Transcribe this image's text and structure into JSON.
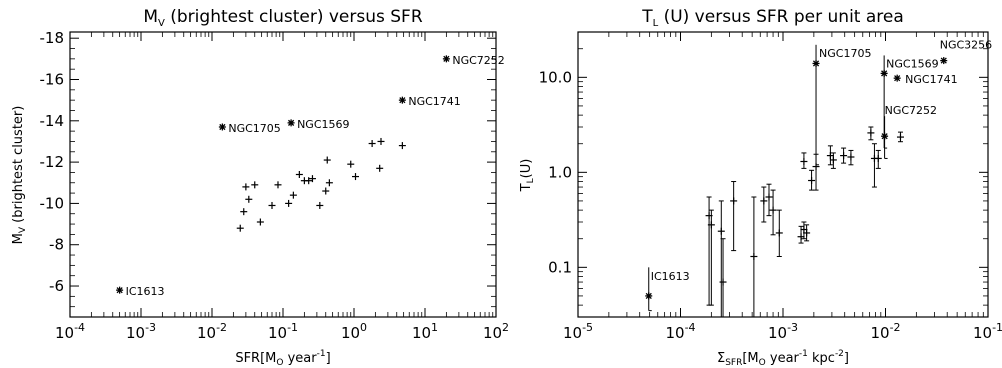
{
  "chart_data": [
    {
      "type": "scatter",
      "title": "M_V (brightest cluster) versus SFR",
      "title_parts": {
        "sym": "M",
        "sub": "V",
        "rest": " (brightest cluster) versus SFR"
      },
      "xlabel": "SFR[M_O year^-1]",
      "xlabel_parts": {
        "a": "SFR[M",
        "b": "O",
        "c": " year",
        "d": "-1",
        "e": "]"
      },
      "ylabel": "M_V (brightest cluster)",
      "ylabel_parts": {
        "a": "M",
        "b": "V",
        "c": " (brightest cluster)"
      },
      "x_scale": "log",
      "xlim": [
        0.0001,
        100
      ],
      "ylim": [
        -4.5,
        -18.3
      ],
      "y_inverted": true,
      "x_ticks": [
        0.0001,
        0.001,
        0.01,
        0.1,
        1,
        10,
        100
      ],
      "x_tick_labels": [
        {
          "base": "10",
          "exp": "-4"
        },
        {
          "base": "10",
          "exp": "-3"
        },
        {
          "base": "10",
          "exp": "-2"
        },
        {
          "base": "10",
          "exp": "-1"
        },
        {
          "base": "10",
          "exp": "0"
        },
        {
          "base": "10",
          "exp": "1"
        },
        {
          "base": "10",
          "exp": "2"
        }
      ],
      "y_ticks": [
        -6,
        -8,
        -10,
        -12,
        -14,
        -16,
        -18
      ],
      "y_tick_labels": [
        "-6",
        "-8",
        "-10",
        "-12",
        "-14",
        "-16",
        "-18"
      ],
      "labeled_points": [
        {
          "label": "IC1613",
          "x": 0.0005,
          "y": -5.8
        },
        {
          "label": "NGC1705",
          "x": 0.014,
          "y": -13.7
        },
        {
          "label": "NGC1569",
          "x": 0.13,
          "y": -13.9
        },
        {
          "label": "NGC1741",
          "x": 4.8,
          "y": -15.0
        },
        {
          "label": "NGC7252",
          "x": 20,
          "y": -17.0
        }
      ],
      "points": [
        {
          "x": 0.025,
          "y": -8.8
        },
        {
          "x": 0.028,
          "y": -9.6
        },
        {
          "x": 0.03,
          "y": -10.8
        },
        {
          "x": 0.033,
          "y": -10.2
        },
        {
          "x": 0.04,
          "y": -10.9
        },
        {
          "x": 0.048,
          "y": -9.1
        },
        {
          "x": 0.07,
          "y": -9.9
        },
        {
          "x": 0.085,
          "y": -10.9
        },
        {
          "x": 0.12,
          "y": -10.0
        },
        {
          "x": 0.14,
          "y": -10.4
        },
        {
          "x": 0.17,
          "y": -11.4
        },
        {
          "x": 0.2,
          "y": -11.1
        },
        {
          "x": 0.23,
          "y": -11.1
        },
        {
          "x": 0.26,
          "y": -11.2
        },
        {
          "x": 0.33,
          "y": -9.9
        },
        {
          "x": 0.4,
          "y": -10.6
        },
        {
          "x": 0.42,
          "y": -12.1
        },
        {
          "x": 0.45,
          "y": -11.0
        },
        {
          "x": 0.9,
          "y": -11.9
        },
        {
          "x": 1.05,
          "y": -11.3
        },
        {
          "x": 1.8,
          "y": -12.9
        },
        {
          "x": 2.3,
          "y": -11.7
        },
        {
          "x": 2.4,
          "y": -13.0
        },
        {
          "x": 4.8,
          "y": -12.8
        }
      ]
    },
    {
      "type": "scatter",
      "title": "T_L (U) versus SFR per unit area",
      "title_parts": {
        "sym": "T",
        "sub": "L",
        "rest": " (U) versus SFR per unit area"
      },
      "xlabel": "Σ_SFR[M_O year^-1 kpc^-2]",
      "xlabel_parts": {
        "a": "Σ",
        "b": "SFR",
        "c": "[M",
        "d": "O",
        "e": " year",
        "f": "-1",
        "g": " kpc",
        "h": "-2",
        "i": "]"
      },
      "ylabel": "T_L(U)",
      "ylabel_parts": {
        "a": "T",
        "b": "L",
        "c": "(U)"
      },
      "x_scale": "log",
      "y_scale": "log",
      "xlim": [
        1e-05,
        0.1
      ],
      "ylim": [
        0.03,
        30
      ],
      "x_ticks": [
        1e-05,
        0.0001,
        0.001,
        0.01,
        0.1
      ],
      "x_tick_labels": [
        {
          "base": "10",
          "exp": "-5"
        },
        {
          "base": "10",
          "exp": "-4"
        },
        {
          "base": "10",
          "exp": "-3"
        },
        {
          "base": "10",
          "exp": "-2"
        },
        {
          "base": "10",
          "exp": "-1"
        }
      ],
      "y_ticks": [
        0.1,
        1.0,
        10.0
      ],
      "y_tick_labels": [
        "0.1",
        "1.0",
        "10.0"
      ],
      "labeled_points": [
        {
          "label": "IC1613",
          "x": 4.9e-05,
          "y": 0.05,
          "ylo": 0.035,
          "yhi": 0.1
        },
        {
          "label": "NGC1705",
          "x": 0.0021,
          "y": 14,
          "ylo": 1.2,
          "yhi": 22
        },
        {
          "label": "NGC1569",
          "x": 0.0097,
          "y": 11,
          "ylo": 1.8,
          "yhi": 17
        },
        {
          "label": "NGC1741",
          "x": 0.013,
          "y": 9.8
        },
        {
          "label": "NGC7252",
          "x": 0.0098,
          "y": 2.4,
          "ylo": 1.4,
          "yhi": 3.9
        },
        {
          "label": "NGC3256",
          "x": 0.037,
          "y": 15
        }
      ],
      "points": [
        {
          "x": 0.00019,
          "y": 0.35,
          "ylo": 0.04,
          "yhi": 0.55
        },
        {
          "x": 0.0002,
          "y": 0.28,
          "ylo": 0.04,
          "yhi": 0.4
        },
        {
          "x": 0.00025,
          "y": 0.24,
          "ylo": 0.03,
          "yhi": 0.5
        },
        {
          "x": 0.00026,
          "y": 0.07,
          "ylo": 0.03,
          "yhi": 0.2
        },
        {
          "x": 0.00033,
          "y": 0.5,
          "ylo": 0.15,
          "yhi": 0.8
        },
        {
          "x": 0.00052,
          "y": 0.13,
          "ylo": 0.03,
          "yhi": 0.55
        },
        {
          "x": 0.00065,
          "y": 0.5,
          "ylo": 0.3,
          "yhi": 0.7
        },
        {
          "x": 0.00073,
          "y": 0.55,
          "ylo": 0.35,
          "yhi": 0.75
        },
        {
          "x": 0.0008,
          "y": 0.4,
          "ylo": 0.22,
          "yhi": 0.65
        },
        {
          "x": 0.00092,
          "y": 0.23,
          "ylo": 0.13,
          "yhi": 0.4
        },
        {
          "x": 0.0015,
          "y": 0.21,
          "ylo": 0.18,
          "yhi": 0.27
        },
        {
          "x": 0.0016,
          "y": 0.25,
          "ylo": 0.2,
          "yhi": 0.3
        },
        {
          "x": 0.0017,
          "y": 0.23,
          "ylo": 0.19,
          "yhi": 0.28
        },
        {
          "x": 0.0016,
          "y": 1.3,
          "ylo": 1.1,
          "yhi": 1.6
        },
        {
          "x": 0.0019,
          "y": 0.82,
          "ylo": 0.65,
          "yhi": 1.05
        },
        {
          "x": 0.0021,
          "y": 1.15,
          "ylo": 0.65,
          "yhi": 1.55
        },
        {
          "x": 0.0029,
          "y": 1.5,
          "ylo": 1.2,
          "yhi": 1.9
        },
        {
          "x": 0.0031,
          "y": 1.35,
          "ylo": 1.1,
          "yhi": 1.6
        },
        {
          "x": 0.0039,
          "y": 1.5,
          "ylo": 1.25,
          "yhi": 1.8
        },
        {
          "x": 0.0046,
          "y": 1.45,
          "ylo": 1.2,
          "yhi": 1.7
        },
        {
          "x": 0.0072,
          "y": 2.6,
          "ylo": 2.2,
          "yhi": 3.0
        },
        {
          "x": 0.0078,
          "y": 1.4,
          "ylo": 0.7,
          "yhi": 2.0
        },
        {
          "x": 0.0085,
          "y": 1.4,
          "ylo": 1.1,
          "yhi": 1.7
        },
        {
          "x": 0.014,
          "y": 2.35,
          "ylo": 2.1,
          "yhi": 2.65
        }
      ]
    }
  ]
}
